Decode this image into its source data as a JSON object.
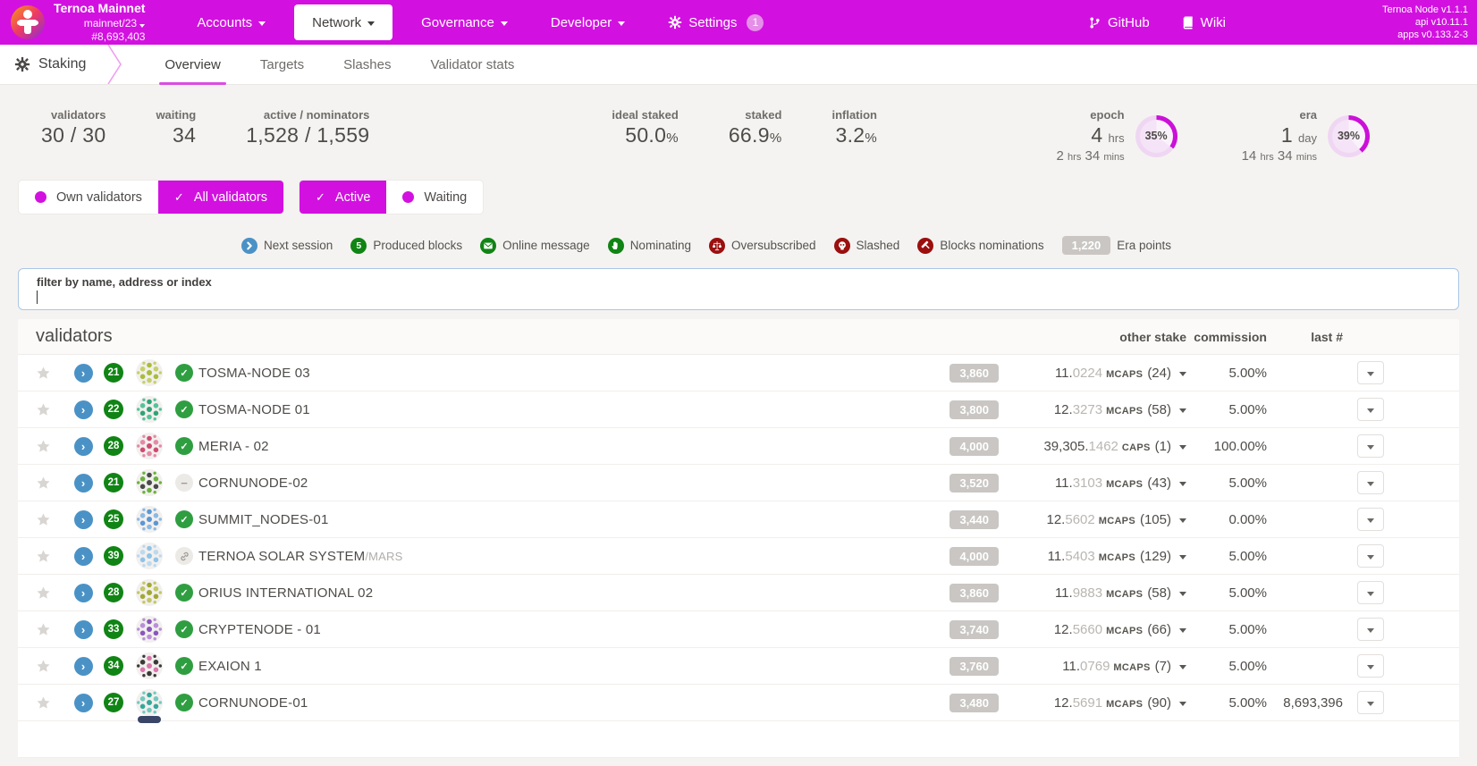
{
  "header": {
    "chain": {
      "name": "Ternoa Mainnet",
      "spec": "mainnet/23",
      "block": "#8,693,403"
    },
    "menus": [
      {
        "label": "Accounts"
      },
      {
        "label": "Network",
        "active": true
      },
      {
        "label": "Governance"
      },
      {
        "label": "Developer"
      },
      {
        "label": "Settings",
        "badge": "1"
      }
    ],
    "links": [
      {
        "label": "GitHub"
      },
      {
        "label": "Wiki"
      }
    ],
    "versions": [
      "Ternoa Node v1.1.1",
      "api v10.11.1",
      "apps v0.133.2-3"
    ],
    "colors": {
      "bar": "#d211e0",
      "accent": "#d211e0"
    }
  },
  "nav": {
    "section": "Staking",
    "tabs": [
      {
        "label": "Overview",
        "active": true
      },
      {
        "label": "Targets"
      },
      {
        "label": "Slashes"
      },
      {
        "label": "Validator stats"
      }
    ]
  },
  "summary": {
    "stats": [
      {
        "label": "validators",
        "value": "30 / 30"
      },
      {
        "label": "waiting",
        "value": "34"
      },
      {
        "label": "active / nominators",
        "value": "1,528 / 1,559"
      }
    ],
    "stats2": [
      {
        "label": "ideal staked",
        "value": "50.0",
        "suffix": "%"
      },
      {
        "label": "staked",
        "value": "66.9",
        "suffix": "%"
      },
      {
        "label": "inflation",
        "value": "3.2",
        "suffix": "%"
      }
    ],
    "progress": [
      {
        "label": "epoch",
        "big": "4 hrs",
        "sub": "2 hrs 34 mins",
        "percent": 35
      },
      {
        "label": "era",
        "big": "1 day",
        "sub": "14 hrs 34 mins",
        "percent": 39
      }
    ]
  },
  "filters": {
    "groups": [
      [
        {
          "label": "Own validators",
          "on": false
        },
        {
          "label": "All validators",
          "on": true
        }
      ],
      [
        {
          "label": "Active",
          "on": true
        },
        {
          "label": "Waiting",
          "on": false
        }
      ]
    ]
  },
  "legend": {
    "items": [
      {
        "type": "chevron",
        "label": "Next session",
        "color": "#4a92c6"
      },
      {
        "type": "num",
        "glyph": "5",
        "label": "Produced blocks",
        "color": "#108414"
      },
      {
        "type": "mail",
        "label": "Online message",
        "color": "#108414"
      },
      {
        "type": "hand",
        "label": "Nominating",
        "color": "#108414"
      },
      {
        "type": "scale",
        "label": "Oversubscribed",
        "color": "#9b0f0f"
      },
      {
        "type": "skull",
        "label": "Slashed",
        "color": "#9b0f0f"
      },
      {
        "type": "gavel",
        "label": "Blocks nominations",
        "color": "#9b0f0f"
      },
      {
        "type": "badge",
        "badge": "1,220",
        "label": "Era points"
      }
    ]
  },
  "filter_input": {
    "label": "filter by name, address or index",
    "value": ""
  },
  "table": {
    "title": "validators",
    "columns": [
      "other stake",
      "commission",
      "last #"
    ],
    "rows": [
      {
        "count": "21",
        "name": "TOSMA-NODE 03",
        "status": "check",
        "points": "3,860",
        "stake_int": "11",
        "stake_dec": "0224",
        "stake_unit": "MCAPS",
        "nominators": "(24)",
        "commission": "5.00%",
        "last": "",
        "identicon_colors": [
          "#a9bc3c",
          "#c6d06a"
        ]
      },
      {
        "count": "22",
        "name": "TOSMA-NODE 01",
        "status": "check",
        "points": "3,800",
        "stake_int": "12",
        "stake_dec": "3273",
        "stake_unit": "MCAPS",
        "nominators": "(58)",
        "commission": "5.00%",
        "last": "",
        "identicon_colors": [
          "#2fa374",
          "#56c29a"
        ]
      },
      {
        "count": "28",
        "name": "MERIA - 02",
        "status": "check",
        "points": "4,000",
        "stake_int": "39,305",
        "stake_dec": "1462",
        "stake_unit": "CAPS",
        "nominators": "(1)",
        "commission": "100.00%",
        "last": "",
        "identicon_colors": [
          "#d04b72",
          "#e48aa6"
        ]
      },
      {
        "count": "21",
        "name": "CORNUNODE-02",
        "status": "minus",
        "points": "3,520",
        "stake_int": "11",
        "stake_dec": "3103",
        "stake_unit": "MCAPS",
        "nominators": "(43)",
        "commission": "5.00%",
        "last": "",
        "identicon_colors": [
          "#4a4a4a",
          "#6cb13e"
        ]
      },
      {
        "count": "25",
        "name": "SUMMIT_NODES-01",
        "status": "check",
        "points": "3,440",
        "stake_int": "12",
        "stake_dec": "5602",
        "stake_unit": "MCAPS",
        "nominators": "(105)",
        "commission": "0.00%",
        "last": "",
        "identicon_colors": [
          "#5b97d6",
          "#8bb9e4"
        ]
      },
      {
        "count": "39",
        "name": "TERNOA SOLAR SYSTEM",
        "name_suffix": "/MARS",
        "status": "link",
        "points": "4,000",
        "stake_int": "11",
        "stake_dec": "5403",
        "stake_unit": "MCAPS",
        "nominators": "(129)",
        "commission": "5.00%",
        "last": "",
        "identicon_colors": [
          "#8fc3e8",
          "#bcd9f0"
        ]
      },
      {
        "count": "28",
        "name": "ORIUS INTERNATIONAL 02",
        "status": "check",
        "points": "3,860",
        "stake_int": "11",
        "stake_dec": "9883",
        "stake_unit": "MCAPS",
        "nominators": "(58)",
        "commission": "5.00%",
        "last": "",
        "identicon_colors": [
          "#a2a832",
          "#c3c766"
        ]
      },
      {
        "count": "33",
        "name": "CRYPTENODE - 01",
        "status": "check",
        "points": "3,740",
        "stake_int": "12",
        "stake_dec": "5660",
        "stake_unit": "MCAPS",
        "nominators": "(66)",
        "commission": "5.00%",
        "last": "",
        "identicon_colors": [
          "#8a56bd",
          "#b98fd9"
        ]
      },
      {
        "count": "34",
        "name": "EXAION 1",
        "status": "check",
        "points": "3,760",
        "stake_int": "11",
        "stake_dec": "0769",
        "stake_unit": "MCAPS",
        "nominators": "(7)",
        "commission": "5.00%",
        "last": "",
        "identicon_colors": [
          "#d977ab",
          "#3a3a3a"
        ]
      },
      {
        "count": "27",
        "name": "CORNUNODE-01",
        "status": "check",
        "points": "3,480",
        "stake_int": "12",
        "stake_dec": "5691",
        "stake_unit": "MCAPS",
        "nominators": "(90)",
        "commission": "5.00%",
        "last": "8,693,396",
        "identicon_colors": [
          "#35a79b",
          "#74c9bf"
        ]
      },
      {
        "partial": true,
        "identicon_colors": [
          "#3a4668",
          "#3a4668"
        ]
      }
    ]
  }
}
